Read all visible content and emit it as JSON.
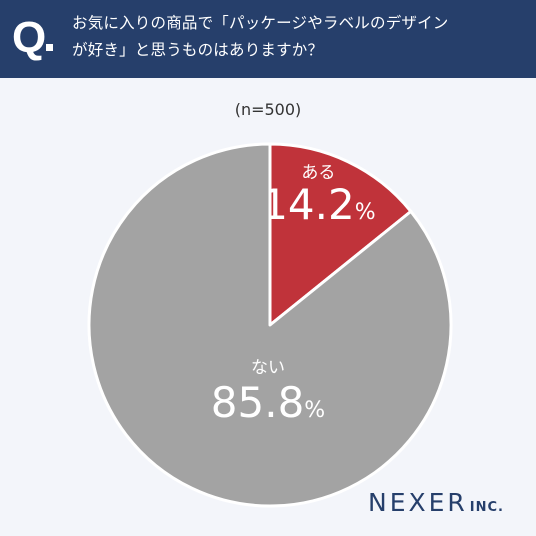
{
  "header": {
    "q_label": "Q",
    "question_line1": "お気に入りの商品で「パッケージやラベルのデザイン",
    "question_line2": "が好き」と思うものはありますか？",
    "background": "#263f6b"
  },
  "sample_size_label": "(n=500)",
  "chart_data": {
    "type": "pie",
    "slices": [
      {
        "label": "ある",
        "value": 14.2,
        "display": "14.2",
        "unit": "%",
        "color": "#c0333a"
      },
      {
        "label": "ない",
        "value": 85.8,
        "display": "85.8",
        "unit": "%",
        "color": "#a3a3a3"
      }
    ],
    "start_angle": "12 o'clock",
    "direction": "clockwise"
  },
  "logo": {
    "name": "NEXER",
    "suffix": "INC."
  }
}
